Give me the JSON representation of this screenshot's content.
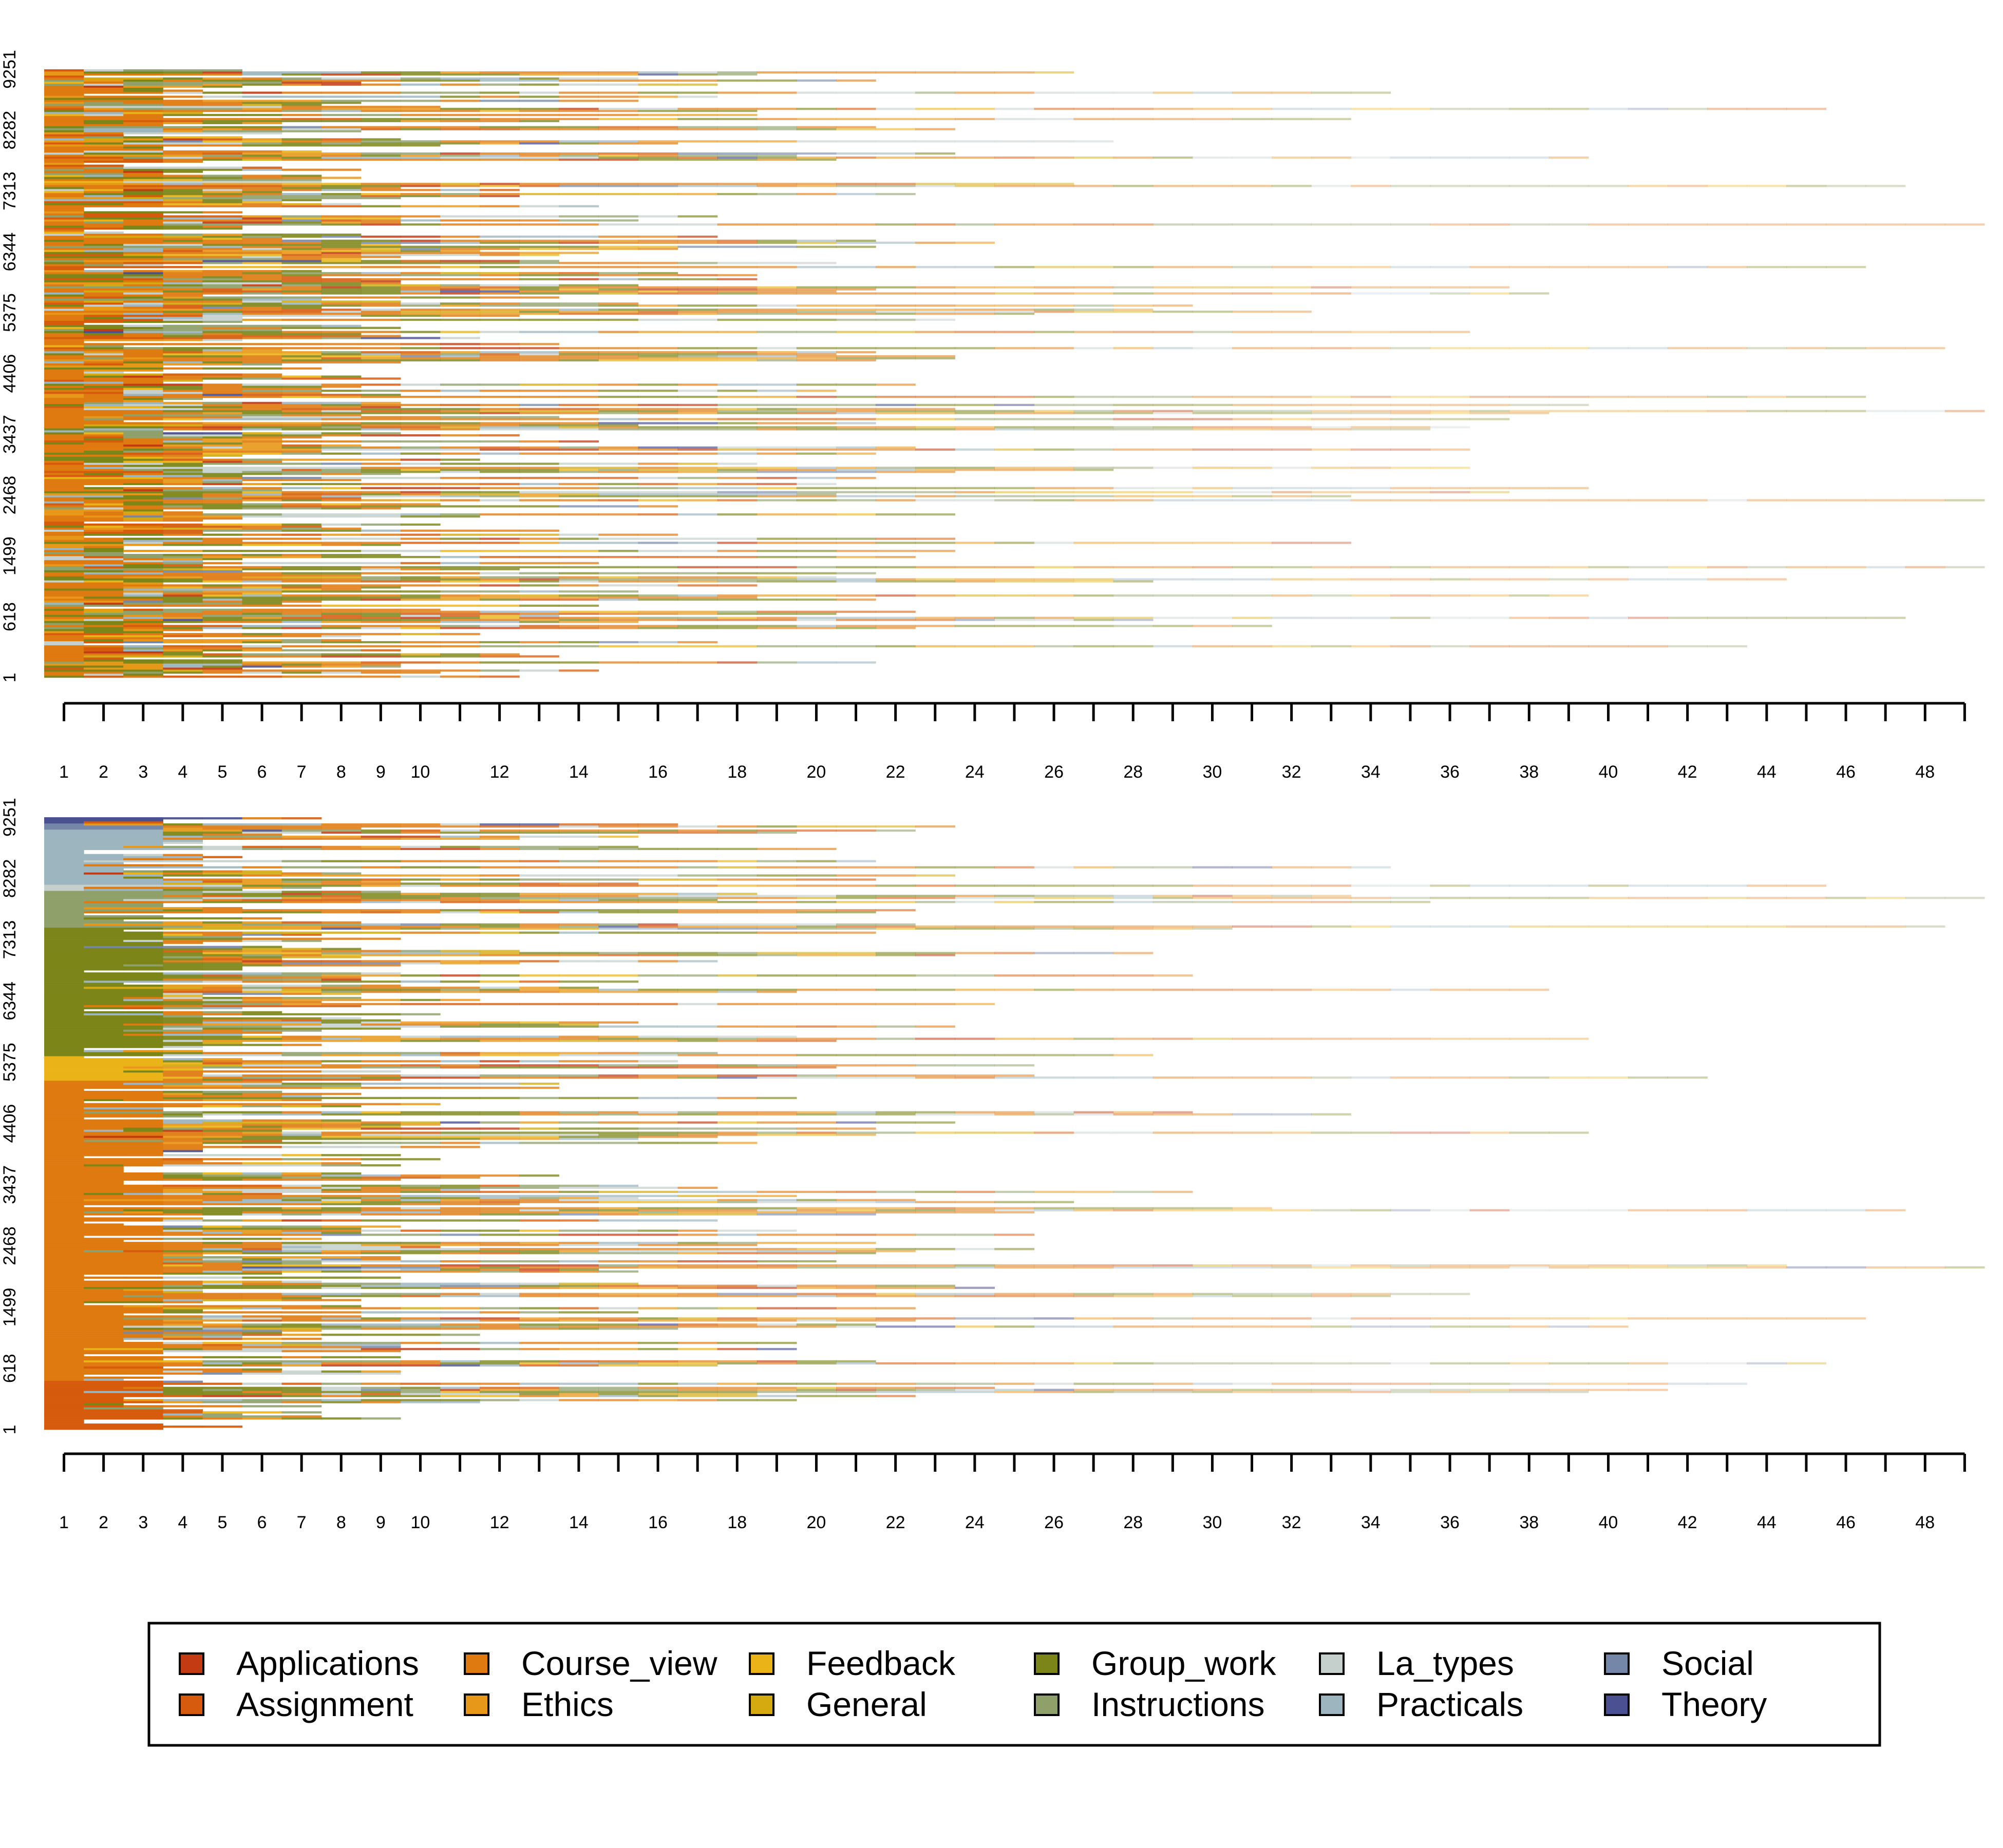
{
  "chart_data": [
    {
      "type": "sequence_index_plot",
      "sort": "unsorted",
      "n_sequences": 9251,
      "x_ticks": [
        1,
        2,
        3,
        4,
        5,
        6,
        7,
        8,
        9,
        10,
        11,
        12,
        13,
        14,
        15,
        16,
        17,
        18,
        19,
        20,
        21,
        22,
        23,
        24,
        25,
        26,
        27,
        28,
        29,
        30,
        31,
        32,
        33,
        34,
        35,
        36,
        37,
        38,
        39,
        40,
        41,
        42,
        43,
        44,
        45,
        46,
        47,
        48,
        49
      ],
      "x_tick_labels": [
        "1",
        "2",
        "3",
        "4",
        "5",
        "6",
        "7",
        "8",
        "9",
        "10",
        "12",
        "14",
        "16",
        "18",
        "20",
        "22",
        "24",
        "26",
        "28",
        "30",
        "32",
        "34",
        "36",
        "38",
        "40",
        "42",
        "44",
        "46",
        "48"
      ],
      "y_tick_labels": [
        "1",
        "618",
        "1499",
        "2468",
        "3437",
        "4406",
        "5375",
        "6344",
        "7313",
        "8282",
        "9251"
      ],
      "max_length": 49
    },
    {
      "type": "sequence_index_plot",
      "sort": "sorted_by_states",
      "n_sequences": 9251,
      "x_tick_labels": [
        "1",
        "2",
        "3",
        "4",
        "5",
        "6",
        "7",
        "8",
        "9",
        "10",
        "12",
        "14",
        "16",
        "18",
        "20",
        "22",
        "24",
        "26",
        "28",
        "30",
        "32",
        "34",
        "36",
        "38",
        "40",
        "42",
        "44",
        "46",
        "48"
      ],
      "y_tick_labels": [
        "1",
        "618",
        "1499",
        "2468",
        "3437",
        "4406",
        "5375",
        "6344",
        "7313",
        "8282",
        "9251"
      ],
      "sorted_blocks": [
        {
          "state": "Assignment",
          "from": 0.0,
          "to": 0.08
        },
        {
          "state": "Course_view",
          "from": 0.08,
          "to": 0.57
        },
        {
          "state": "Feedback",
          "from": 0.57,
          "to": 0.61
        },
        {
          "state": "Group_work",
          "from": 0.61,
          "to": 0.82
        },
        {
          "state": "Instructions",
          "from": 0.82,
          "to": 0.88
        },
        {
          "state": "La_types",
          "from": 0.88,
          "to": 0.89
        },
        {
          "state": "Practicals",
          "from": 0.89,
          "to": 0.98
        },
        {
          "state": "Social",
          "from": 0.98,
          "to": 0.99
        },
        {
          "state": "Theory",
          "from": 0.99,
          "to": 1.0
        }
      ]
    }
  ],
  "legend": {
    "items": [
      {
        "label": "Applications",
        "color": "#c23b12"
      },
      {
        "label": "Assignment",
        "color": "#d65b0c"
      },
      {
        "label": "Course_view",
        "color": "#df7a10"
      },
      {
        "label": "Ethics",
        "color": "#e89818"
      },
      {
        "label": "Feedback",
        "color": "#eab418"
      },
      {
        "label": "General",
        "color": "#d4aa10"
      },
      {
        "label": "Group_work",
        "color": "#7c8518"
      },
      {
        "label": "Instructions",
        "color": "#8fa06a"
      },
      {
        "label": "La_types",
        "color": "#c5d0cc"
      },
      {
        "label": "Practicals",
        "color": "#9cb5bf"
      },
      {
        "label": "Social",
        "color": "#7587a8"
      },
      {
        "label": "Theory",
        "color": "#4a5091"
      }
    ]
  }
}
